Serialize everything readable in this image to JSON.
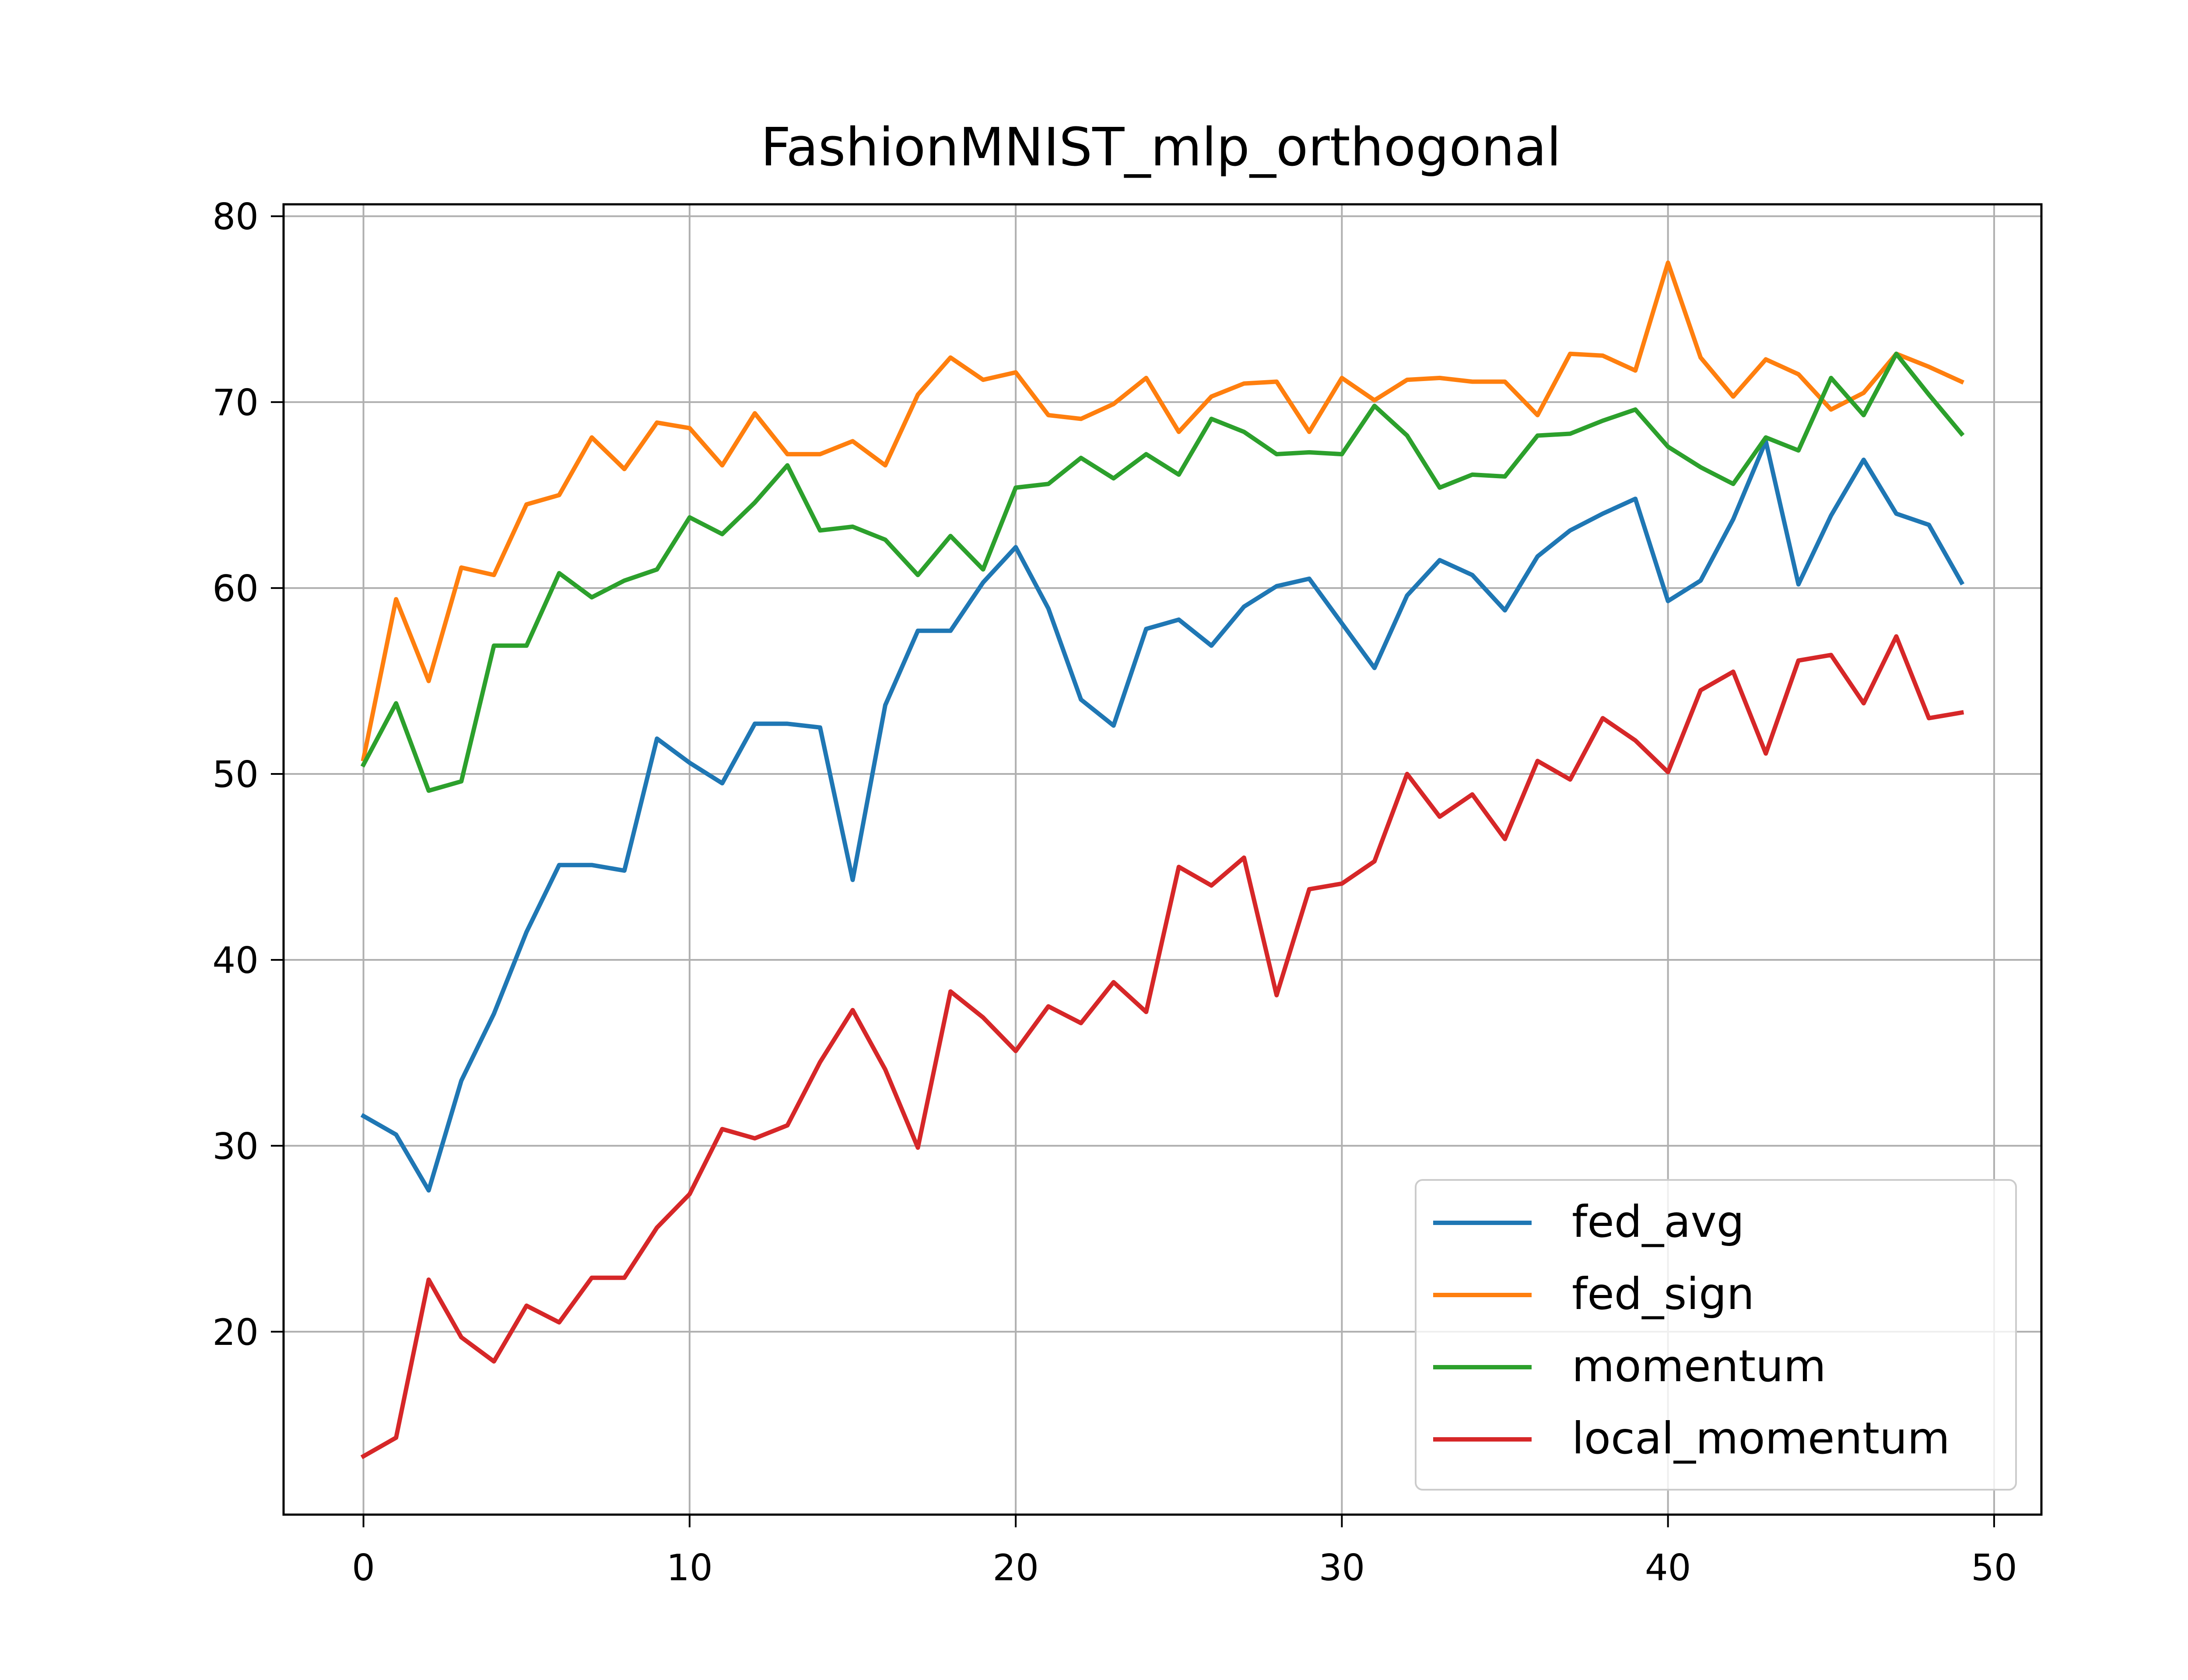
{
  "chart_data": {
    "type": "line",
    "title": "FashionMNIST_mlp_orthogonal",
    "xlabel": "",
    "ylabel": "",
    "xlim": [
      -2.45,
      51.45
    ],
    "ylim": [
      10.16,
      80.64
    ],
    "xticks": [
      0,
      10,
      20,
      30,
      40,
      50
    ],
    "yticks": [
      20,
      30,
      40,
      50,
      60,
      70,
      80
    ],
    "grid": true,
    "legend_position": "lower-right",
    "x": [
      0,
      1,
      2,
      3,
      4,
      5,
      6,
      7,
      8,
      9,
      10,
      11,
      12,
      13,
      14,
      15,
      16,
      17,
      18,
      19,
      20,
      21,
      22,
      23,
      24,
      25,
      26,
      27,
      28,
      29,
      30,
      31,
      32,
      33,
      34,
      35,
      36,
      37,
      38,
      39,
      40,
      41,
      42,
      43,
      44,
      45,
      46,
      47,
      48,
      49
    ],
    "series": [
      {
        "name": "fed_avg",
        "color": "#1f77b4",
        "values": [
          31.6,
          30.6,
          27.6,
          33.5,
          37.1,
          41.5,
          45.1,
          45.1,
          44.8,
          51.9,
          50.6,
          49.5,
          52.7,
          52.7,
          52.5,
          44.3,
          53.7,
          57.7,
          57.7,
          60.3,
          62.2,
          58.9,
          54.0,
          52.6,
          57.8,
          58.3,
          56.9,
          59.0,
          60.1,
          60.5,
          58.1,
          55.7,
          59.6,
          61.5,
          60.7,
          58.8,
          61.7,
          63.1,
          64.0,
          64.8,
          59.3,
          60.4,
          63.7,
          67.9,
          60.2,
          63.9,
          66.9,
          64.0,
          63.4,
          60.3
        ]
      },
      {
        "name": "fed_sign",
        "color": "#ff7f0e",
        "values": [
          50.8,
          59.4,
          55.0,
          61.1,
          60.7,
          64.5,
          65.0,
          68.1,
          66.4,
          68.9,
          68.6,
          66.6,
          69.4,
          67.2,
          67.2,
          67.9,
          66.6,
          70.4,
          72.4,
          71.2,
          71.6,
          69.3,
          69.1,
          69.9,
          71.3,
          68.4,
          70.3,
          71.0,
          71.1,
          68.4,
          71.3,
          70.1,
          71.2,
          71.3,
          71.1,
          71.1,
          69.3,
          72.6,
          72.5,
          71.7,
          77.5,
          72.4,
          70.3,
          72.3,
          71.5,
          69.6,
          70.5,
          72.6,
          71.9,
          71.1
        ]
      },
      {
        "name": "momentum",
        "color": "#2ca02c",
        "values": [
          50.5,
          53.8,
          49.1,
          49.6,
          56.9,
          56.9,
          60.8,
          59.5,
          60.4,
          61.0,
          63.8,
          62.9,
          64.6,
          66.6,
          63.1,
          63.3,
          62.6,
          60.7,
          62.8,
          61.0,
          65.4,
          65.6,
          67.0,
          65.9,
          67.2,
          66.1,
          69.1,
          68.4,
          67.2,
          67.3,
          67.2,
          69.8,
          68.2,
          65.4,
          66.1,
          66.0,
          68.2,
          68.3,
          69.0,
          69.6,
          67.6,
          66.5,
          65.6,
          68.1,
          67.4,
          71.3,
          69.3,
          72.6,
          70.4,
          68.3
        ]
      },
      {
        "name": "local_momentum",
        "color": "#d62728",
        "values": [
          13.3,
          14.3,
          22.8,
          19.7,
          18.4,
          21.4,
          20.5,
          22.9,
          22.9,
          25.6,
          27.4,
          30.9,
          30.4,
          31.1,
          34.5,
          37.3,
          34.1,
          29.9,
          38.3,
          36.9,
          35.1,
          37.5,
          36.6,
          38.8,
          37.2,
          45.0,
          44.0,
          45.5,
          38.1,
          43.8,
          44.1,
          45.3,
          50.0,
          47.7,
          48.9,
          46.5,
          50.7,
          49.7,
          53.0,
          51.8,
          50.1,
          54.5,
          55.5,
          51.1,
          56.1,
          56.4,
          53.8,
          57.4,
          53.0,
          53.3
        ]
      }
    ]
  }
}
